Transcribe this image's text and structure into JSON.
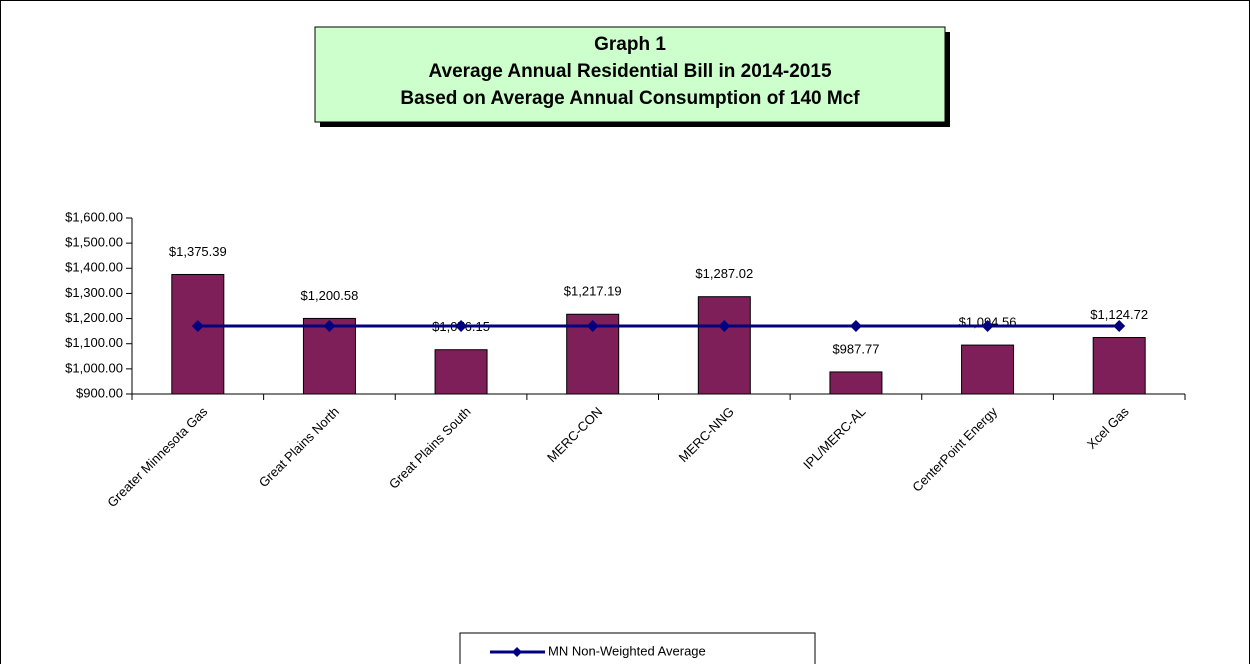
{
  "chart_data": {
    "type": "bar",
    "title": [
      "Graph 1",
      "Average Annual Residential Bill in 2014-2015",
      "Based on Average Annual Consumption of 140 Mcf"
    ],
    "categories": [
      "Greater Minnesota Gas",
      "Great Plains North",
      "Great Plains South",
      "MERC-CON",
      "MERC-NNG",
      "IPL/MERC-AL",
      "CenterPoint Energy",
      "Xcel Gas"
    ],
    "series": [
      {
        "type": "bar",
        "color": "#7f1f5a",
        "values": [
          1375.39,
          1200.58,
          1076.15,
          1217.19,
          1287.02,
          987.77,
          1094.56,
          1124.72
        ],
        "value_labels": [
          "$1,375.39",
          "$1,200.58",
          "$1,076.15",
          "$1,217.19",
          "$1,287.02",
          "$987.77",
          "$1,094.56",
          "$1,124.72"
        ]
      },
      {
        "type": "line",
        "name": "MN Non-Weighted Average",
        "color": "#000080",
        "values": [
          1170.42,
          1170.42,
          1170.42,
          1170.42,
          1170.42,
          1170.42,
          1170.42,
          1170.42
        ]
      }
    ],
    "ylim": [
      900,
      1600
    ],
    "yticks": [
      {
        "value": 900,
        "label": "$900.00"
      },
      {
        "value": 1000,
        "label": "$1,000.00"
      },
      {
        "value": 1100,
        "label": "$1,100.00"
      },
      {
        "value": 1200,
        "label": "$1,200.00"
      },
      {
        "value": 1300,
        "label": "$1,300.00"
      },
      {
        "value": 1400,
        "label": "$1,400.00"
      },
      {
        "value": 1500,
        "label": "$1,500.00"
      },
      {
        "value": 1600,
        "label": "$1,600.00"
      }
    ],
    "legend": "bottom"
  }
}
